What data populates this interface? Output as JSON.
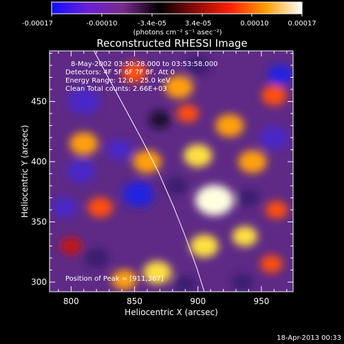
{
  "colorbar": {
    "tick_labels": [
      "-0.00017",
      "-0.00010",
      "-3.4e-05",
      "3.4e-05",
      "0.00010",
      "0.00017"
    ],
    "unit_label": "(photons cm⁻² s⁻¹ asec⁻²)",
    "colors": [
      "#1010ff",
      "#6a1fd6",
      "#7a2a8a",
      "#000000",
      "#8a0a0a",
      "#ff2000",
      "#ffa000",
      "#ffffff"
    ]
  },
  "chart_data": {
    "type": "heatmap",
    "title": "Reconstructed RHESSI Image",
    "xlabel": "Heliocentric X (arcsec)",
    "ylabel": "Heliocentric Y (arcsec)",
    "xlim": [
      783,
      975
    ],
    "ylim": [
      292,
      492
    ],
    "x_ticks": [
      800,
      850,
      900,
      950
    ],
    "y_ticks": [
      300,
      350,
      400,
      450
    ],
    "colorbar_range": [
      -0.00017,
      0.00017
    ],
    "limb_curve": [
      [
        818,
        492
      ],
      [
        837,
        455
      ],
      [
        856,
        418
      ],
      [
        869,
        391
      ],
      [
        881,
        362
      ],
      [
        890,
        338
      ],
      [
        899,
        312
      ],
      [
        905,
        292
      ]
    ],
    "blobs": [
      {
        "x": 913,
        "y": 368,
        "level": 1.0,
        "r": 12
      },
      {
        "x": 905,
        "y": 330,
        "level": 0.75,
        "r": 9
      },
      {
        "x": 937,
        "y": 338,
        "level": 0.8,
        "r": 8
      },
      {
        "x": 860,
        "y": 400,
        "level": 0.7,
        "r": 9
      },
      {
        "x": 900,
        "y": 405,
        "level": 0.72,
        "r": 9
      },
      {
        "x": 943,
        "y": 400,
        "level": 0.65,
        "r": 9
      },
      {
        "x": 925,
        "y": 430,
        "level": 0.6,
        "r": 9
      },
      {
        "x": 885,
        "y": 462,
        "level": 0.6,
        "r": 9
      },
      {
        "x": 868,
        "y": 308,
        "level": 0.85,
        "r": 9
      },
      {
        "x": 842,
        "y": 302,
        "level": 0.7,
        "r": 8
      },
      {
        "x": 810,
        "y": 415,
        "level": 0.6,
        "r": 9
      },
      {
        "x": 823,
        "y": 362,
        "level": 0.55,
        "r": 8
      },
      {
        "x": 850,
        "y": 474,
        "level": 0.5,
        "r": 8
      },
      {
        "x": 960,
        "y": 455,
        "level": 0.5,
        "r": 8
      },
      {
        "x": 958,
        "y": 315,
        "level": 0.55,
        "r": 7
      },
      {
        "x": 962,
        "y": 360,
        "level": 0.45,
        "r": 7
      },
      {
        "x": 892,
        "y": 440,
        "level": 0.5,
        "r": 7
      },
      {
        "x": 800,
        "y": 330,
        "level": 0.4,
        "r": 7
      },
      {
        "x": 853,
        "y": 373,
        "level": -0.75,
        "r": 10
      },
      {
        "x": 838,
        "y": 410,
        "level": -0.55,
        "r": 8
      },
      {
        "x": 808,
        "y": 392,
        "level": -0.6,
        "r": 9
      },
      {
        "x": 810,
        "y": 450,
        "level": -0.5,
        "r": 10
      },
      {
        "x": 960,
        "y": 420,
        "level": -0.55,
        "r": 9
      },
      {
        "x": 965,
        "y": 472,
        "level": -0.7,
        "r": 8
      },
      {
        "x": 900,
        "y": 480,
        "level": -0.45,
        "r": 8
      },
      {
        "x": 795,
        "y": 362,
        "level": -0.5,
        "r": 8
      },
      {
        "x": 820,
        "y": 320,
        "level": -0.45,
        "r": 8
      },
      {
        "x": 883,
        "y": 380,
        "level": -0.35,
        "r": 7
      },
      {
        "x": 940,
        "y": 370,
        "level": -0.4,
        "r": 7
      },
      {
        "x": 935,
        "y": 300,
        "level": -0.35,
        "r": 7
      },
      {
        "x": 890,
        "y": 298,
        "level": -0.4,
        "r": 7
      },
      {
        "x": 870,
        "y": 435,
        "level": -0.3,
        "r": 7
      }
    ]
  },
  "annotations": {
    "date_range": "8-May-2002 03:50:28.000  to 03:53:58.000",
    "detectors": "Detectors: 4F 5F 6F 7F 8F, Att 0",
    "energy": "Energy Range: 12.0 - 25.0 keV",
    "clean": "Clean     Total counts: 2.66E+03",
    "peak": "Position of Peak = [911,367]"
  },
  "footer": {
    "timestamp": "18-Apr-2013 00:33"
  }
}
